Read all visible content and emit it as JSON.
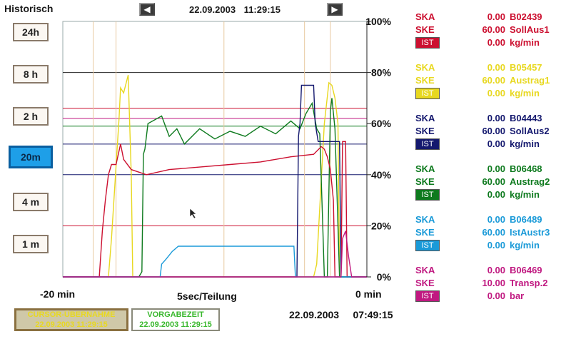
{
  "header": {
    "title": "Historisch",
    "datetime": "22.09.2003 11:29:15",
    "prev_icon": "◀",
    "next_icon": "▶"
  },
  "range_buttons": [
    {
      "label": "24h",
      "active": false
    },
    {
      "label": "8 h",
      "active": false
    },
    {
      "label": "2 h",
      "active": false
    },
    {
      "label": "20m",
      "active": true
    },
    {
      "label": "4 m",
      "active": false
    },
    {
      "label": "1 m",
      "active": false
    }
  ],
  "axis": {
    "y_ticks": [
      "100%",
      "80%",
      "60%",
      "40%",
      "20%",
      "0%"
    ],
    "x_left": "-20 min",
    "x_center": "5sec/Teilung",
    "x_right": "0 min"
  },
  "legend": [
    {
      "color": "#cc1030",
      "ska": "SKA",
      "ska_val": "0.00",
      "ska_tag": "B02439",
      "ske": "SKE",
      "ske_val": "60.00",
      "ske_tag": "SollAus1",
      "ist": "IST",
      "ist_val": "0.00",
      "ist_unit": "kg/min"
    },
    {
      "color": "#e8d820",
      "ska": "SKA",
      "ska_val": "0.00",
      "ska_tag": "B05457",
      "ske": "SKE",
      "ske_val": "60.00",
      "ske_tag": "Austrag1",
      "ist": "IST",
      "ist_val": "0.00",
      "ist_unit": "kg/min"
    },
    {
      "color": "#14186e",
      "ska": "SKA",
      "ska_val": "0.00",
      "ska_tag": "B04443",
      "ske": "SKE",
      "ske_val": "60.00",
      "ske_tag": "SollAus2",
      "ist": "IST",
      "ist_val": "0.00",
      "ist_unit": "kg/min"
    },
    {
      "color": "#0e7a1e",
      "ska": "SKA",
      "ska_val": "0.00",
      "ska_tag": "B06468",
      "ske": "SKE",
      "ske_val": "60.00",
      "ske_tag": "Austrag2",
      "ist": "IST",
      "ist_val": "0.00",
      "ist_unit": "kg/min"
    },
    {
      "color": "#1a9ad8",
      "ska": "SKA",
      "ska_val": "0.00",
      "ska_tag": "B06489",
      "ske": "SKE",
      "ske_val": "60.00",
      "ske_tag": "IstAustr3",
      "ist": "IST",
      "ist_val": "0.00",
      "ist_unit": "kg/min"
    },
    {
      "color": "#c01880",
      "ska": "SKA",
      "ska_val": "0.00",
      "ska_tag": "B06469",
      "ske": "SKE",
      "ske_val": "10.00",
      "ske_tag": "Transp.2",
      "ist": "IST",
      "ist_val": "0.00",
      "ist_unit": "bar"
    }
  ],
  "footer": {
    "cursor_label": "CURSOR-ÜBERNAHME",
    "cursor_time": "22.09.2003 11:29:15",
    "vorgabe_label": "VORGABEZEIT",
    "vorgabe_time": "22.09.2003 11:29:15",
    "current_datetime": "22.09.2003     07:49:15"
  },
  "chart_data": {
    "type": "line",
    "xlabel": "5sec/Teilung",
    "x_range_min": [
      -20,
      0
    ],
    "ylim": [
      0,
      100
    ],
    "y_unit": "%",
    "threshold_lines": [
      {
        "color": "#222222",
        "value": 80
      },
      {
        "color": "#cc1030",
        "value": 66
      },
      {
        "color": "#c01880",
        "value": 62
      },
      {
        "color": "#0e7a1e",
        "value": 59
      },
      {
        "color": "#14186e",
        "value": 52
      },
      {
        "color": "#14186e",
        "value": 40
      },
      {
        "color": "#cc1030",
        "value": 20
      }
    ],
    "vertical_markers": [
      -18,
      -16.5,
      -9.4,
      -4.1,
      -2.4
    ],
    "series": [
      {
        "color": "#e8d820",
        "points": [
          [
            -20,
            0
          ],
          [
            -17,
            0
          ],
          [
            -16.8,
            15
          ],
          [
            -16.3,
            62
          ],
          [
            -16.2,
            74
          ],
          [
            -16,
            72
          ],
          [
            -15.7,
            79
          ],
          [
            -15.5,
            40
          ],
          [
            -15.4,
            0
          ],
          [
            -3.5,
            0
          ],
          [
            -3.3,
            5
          ],
          [
            -2.8,
            60
          ],
          [
            -2.5,
            76
          ],
          [
            -2.3,
            75
          ],
          [
            -2.1,
            70
          ],
          [
            -1.9,
            60
          ],
          [
            -1.8,
            0
          ],
          [
            0,
            0
          ]
        ]
      },
      {
        "color": "#0e7a1e",
        "points": [
          [
            -20,
            0
          ],
          [
            -15,
            0
          ],
          [
            -14.8,
            2
          ],
          [
            -14.7,
            48
          ],
          [
            -14.6,
            50
          ],
          [
            -14.4,
            60
          ],
          [
            -13.5,
            63
          ],
          [
            -13,
            55
          ],
          [
            -12.5,
            58
          ],
          [
            -12,
            52
          ],
          [
            -11,
            58
          ],
          [
            -10,
            54
          ],
          [
            -9,
            57
          ],
          [
            -8,
            55
          ],
          [
            -7,
            59
          ],
          [
            -6,
            56
          ],
          [
            -5,
            61
          ],
          [
            -4.4,
            58
          ],
          [
            -4,
            64
          ],
          [
            -3.6,
            68
          ],
          [
            -3.3,
            58
          ],
          [
            -3.1,
            56
          ],
          [
            -2.9,
            20
          ],
          [
            -2.8,
            0
          ],
          [
            -2.6,
            0
          ],
          [
            -2.4,
            65
          ],
          [
            -2.3,
            70
          ],
          [
            -2.1,
            58
          ],
          [
            -1.9,
            20
          ],
          [
            -1.8,
            0
          ],
          [
            0,
            0
          ]
        ]
      },
      {
        "color": "#cc1030",
        "points": [
          [
            -20,
            0
          ],
          [
            -17.6,
            0
          ],
          [
            -17.4,
            18
          ],
          [
            -17.2,
            30
          ],
          [
            -17,
            40
          ],
          [
            -16.8,
            44
          ],
          [
            -16.5,
            44
          ],
          [
            -16.2,
            52
          ],
          [
            -16,
            46
          ],
          [
            -15.5,
            42
          ],
          [
            -14.5,
            40
          ],
          [
            -13,
            42
          ],
          [
            -11,
            43
          ],
          [
            -9,
            44
          ],
          [
            -7,
            45
          ],
          [
            -5,
            47
          ],
          [
            -3.5,
            48
          ],
          [
            -3.0,
            51
          ],
          [
            -2.8,
            50
          ],
          [
            -2.6,
            47
          ],
          [
            -2.4,
            42
          ],
          [
            -2.2,
            30
          ],
          [
            -2.1,
            0
          ],
          [
            -1.7,
            0
          ],
          [
            -1.6,
            53
          ],
          [
            -1.4,
            53
          ],
          [
            -1.3,
            0
          ],
          [
            0,
            0
          ]
        ]
      },
      {
        "color": "#14186e",
        "points": [
          [
            -20,
            0
          ],
          [
            -4.6,
            0
          ],
          [
            -4.5,
            55
          ],
          [
            -4.4,
            60
          ],
          [
            -4.3,
            75
          ],
          [
            -3.5,
            75
          ],
          [
            -3.4,
            60
          ],
          [
            -3.2,
            53
          ],
          [
            -1.8,
            53
          ],
          [
            -1.7,
            0
          ],
          [
            0,
            0
          ]
        ]
      },
      {
        "color": "#1a9ad8",
        "points": [
          [
            -20,
            0
          ],
          [
            -13.6,
            0
          ],
          [
            -13.5,
            5
          ],
          [
            -13.2,
            7
          ],
          [
            -12.8,
            10
          ],
          [
            -12.4,
            12
          ],
          [
            -4.8,
            12
          ],
          [
            -4.7,
            0
          ],
          [
            0,
            0
          ]
        ]
      },
      {
        "color": "#c01880",
        "points": [
          [
            -20,
            0
          ],
          [
            -1.7,
            0
          ],
          [
            -1.6,
            15
          ],
          [
            -1.4,
            18
          ],
          [
            -1.2,
            8
          ],
          [
            -1,
            0
          ],
          [
            0,
            0
          ]
        ]
      }
    ]
  }
}
